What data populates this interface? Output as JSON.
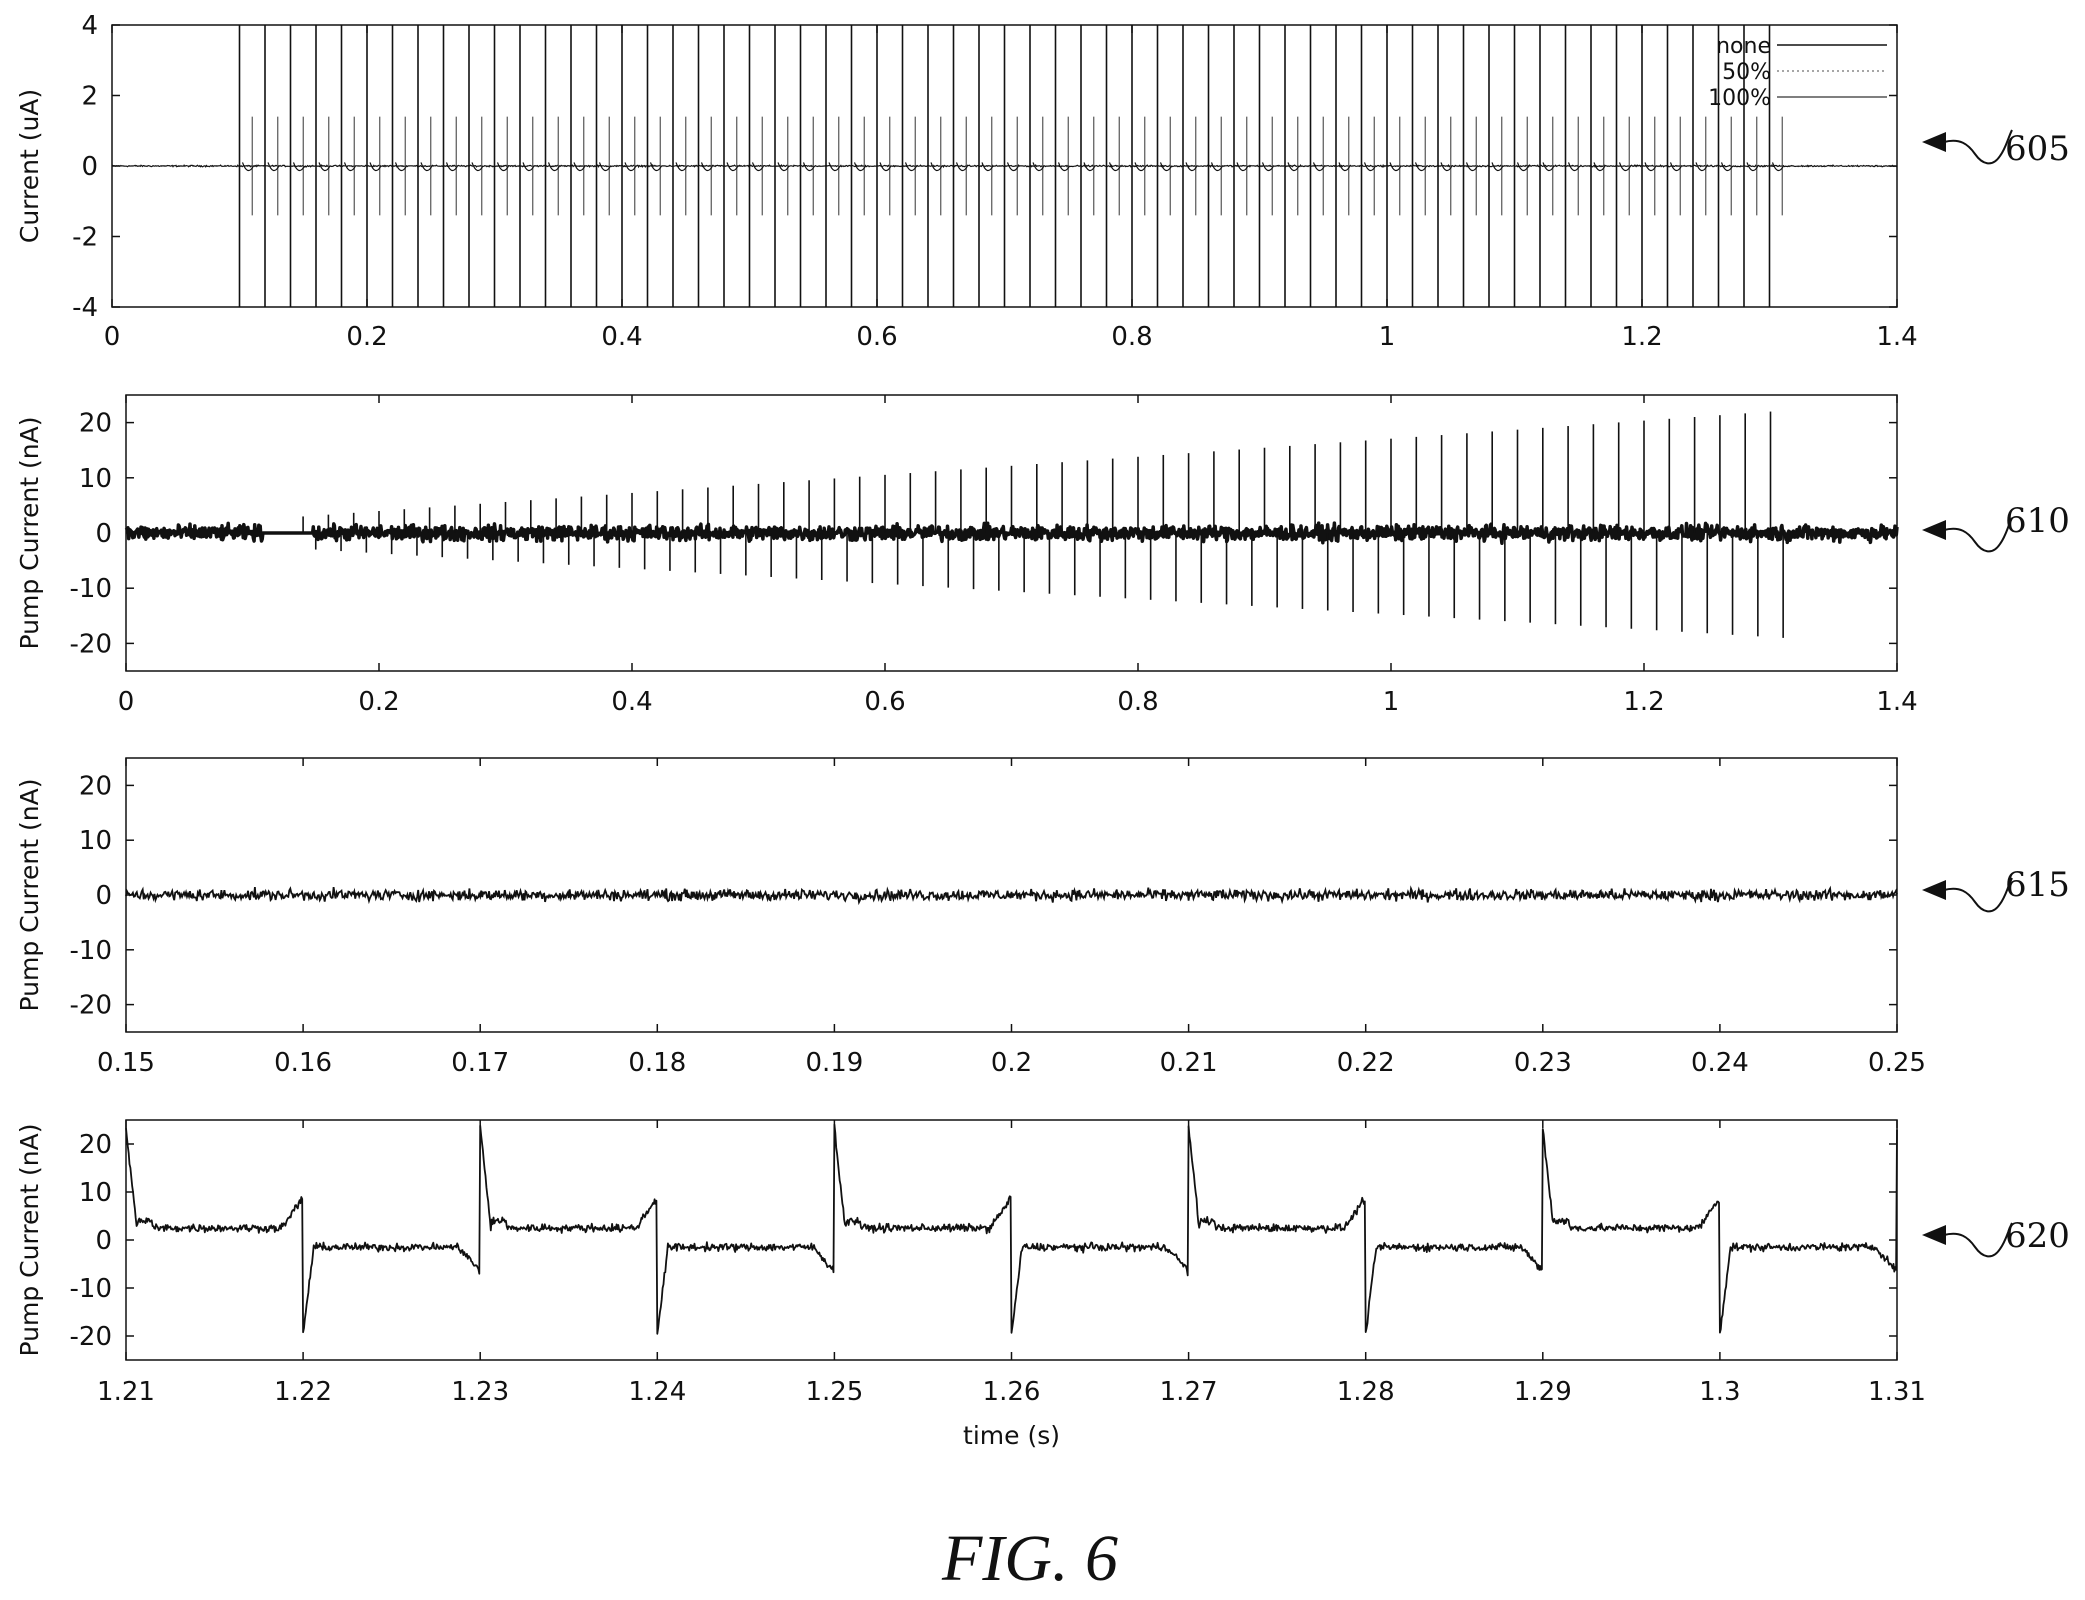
{
  "figure_label": "FIG. 6",
  "colors": {
    "ink": "#111111",
    "grey": "#555555",
    "light": "#888888"
  },
  "chart_data": [
    {
      "id": "605",
      "type": "line",
      "title": "",
      "ylabel": "Current (uA)",
      "xlabel": "",
      "xlim": [
        0,
        1.4
      ],
      "ylim": [
        -4,
        4
      ],
      "xticks": [
        0,
        0.2,
        0.4,
        0.6,
        0.8,
        1,
        1.2,
        1.4
      ],
      "xtick_labels": [
        "0",
        "0.2",
        "0.4",
        "0.6",
        "0.8",
        "1",
        "1.2",
        "1.4"
      ],
      "yticks": [
        -4,
        -2,
        0,
        2,
        4
      ],
      "ytick_labels": [
        "-4",
        "-2",
        "0",
        "2",
        "4"
      ],
      "legend": {
        "position": "top-right",
        "entries": [
          "none",
          "50%",
          "100%"
        ]
      },
      "series": [
        {
          "name": "none"
        },
        {
          "name": "50%"
        },
        {
          "name": "100%"
        }
      ],
      "pulse_train": {
        "start": 0.1,
        "end": 1.3,
        "period": 0.02,
        "amplitude": 4,
        "baseline": 0
      },
      "grid": false
    },
    {
      "id": "610",
      "type": "line",
      "title": "",
      "ylabel": "Pump Current (nA)",
      "xlabel": "",
      "xlim": [
        0,
        1.4
      ],
      "ylim": [
        -25,
        25
      ],
      "xticks": [
        0,
        0.2,
        0.4,
        0.6,
        0.8,
        1,
        1.2,
        1.4
      ],
      "xtick_labels": [
        "0",
        "0.2",
        "0.4",
        "0.6",
        "0.8",
        "1",
        "1.2",
        "1.4"
      ],
      "yticks": [
        -20,
        -10,
        0,
        10,
        20
      ],
      "ytick_labels": [
        "-20",
        "-10",
        "0",
        "10",
        "20"
      ],
      "noise_amplitude": 2,
      "gap": [
        0.108,
        0.148
      ],
      "pulse_train": {
        "start": 0.14,
        "end": 1.3,
        "period": 0.02,
        "peak_start": 3,
        "peak_end": 22,
        "trough_start": -3,
        "trough_end": -19
      },
      "grid": false
    },
    {
      "id": "615",
      "type": "line",
      "title": "",
      "ylabel": "Pump Current (nA)",
      "xlabel": "",
      "xlim": [
        0.15,
        0.25
      ],
      "ylim": [
        -25,
        25
      ],
      "xticks": [
        0.15,
        0.16,
        0.17,
        0.18,
        0.19,
        0.2,
        0.21,
        0.22,
        0.23,
        0.24,
        0.25
      ],
      "xtick_labels": [
        "0.15",
        "0.16",
        "0.17",
        "0.18",
        "0.19",
        "0.2",
        "0.21",
        "0.22",
        "0.23",
        "0.24",
        "0.25"
      ],
      "yticks": [
        -20,
        -10,
        0,
        10,
        20
      ],
      "ytick_labels": [
        "-20",
        "-10",
        "0",
        "10",
        "20"
      ],
      "noise_amplitude": 1.5,
      "grid": false
    },
    {
      "id": "620",
      "type": "line",
      "title": "",
      "ylabel": "Pump Current (nA)",
      "xlabel": "time (s)",
      "xlim": [
        1.21,
        1.31
      ],
      "ylim": [
        -25,
        25
      ],
      "xticks": [
        1.21,
        1.22,
        1.23,
        1.24,
        1.25,
        1.26,
        1.27,
        1.28,
        1.29,
        1.3,
        1.31
      ],
      "xtick_labels": [
        "1.21",
        "1.22",
        "1.23",
        "1.24",
        "1.25",
        "1.26",
        "1.27",
        "1.28",
        "1.29",
        "1.3",
        "1.31"
      ],
      "yticks": [
        -20,
        -10,
        0,
        10,
        20
      ],
      "ytick_labels": [
        "-20",
        "-10",
        "0",
        "10",
        "20"
      ],
      "up_steps": [
        1.21,
        1.23,
        1.25,
        1.27,
        1.29
      ],
      "down_steps": [
        1.22,
        1.24,
        1.26,
        1.28,
        1.3
      ],
      "up_level": 2.5,
      "down_level": -1.5,
      "peak": 21,
      "trough": -18,
      "pre_bump": 8,
      "noise_amplitude": 1.2,
      "grid": false
    }
  ]
}
